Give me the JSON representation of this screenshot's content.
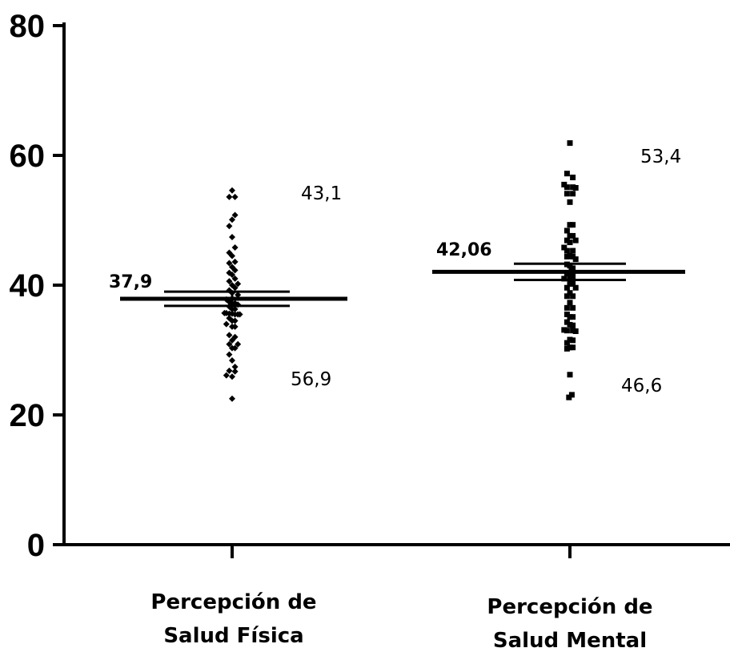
{
  "chart_data": {
    "type": "scatter",
    "title": "",
    "xlabel": "",
    "ylabel": "",
    "ylim": [
      0,
      80
    ],
    "yticks": [
      "0",
      "20",
      "40",
      "60",
      "80"
    ],
    "grid": false,
    "categories": [
      "Percepción de Salud Física",
      "Percepción de Salud Mental"
    ],
    "category_label_lines": [
      [
        "Percepción de",
        "Salud Física"
      ],
      [
        "Percepción de",
        "Salud Mental"
      ]
    ],
    "series": [
      {
        "category": "Percepción de Salud Física",
        "marker": "diamond",
        "mean": 37.9,
        "mean_label": "37,9",
        "error_bar": [
          36.8,
          39.0
        ],
        "points": [
          [
            0,
            54.6
          ],
          [
            -0.3,
            53.6
          ],
          [
            0.3,
            53.6
          ],
          [
            0.3,
            50.8
          ],
          [
            0,
            50.1
          ],
          [
            -0.3,
            49.1
          ],
          [
            0,
            47.4
          ],
          [
            0.3,
            45.8
          ],
          [
            -0.3,
            45.0
          ],
          [
            0,
            44.5
          ],
          [
            0.3,
            43.6
          ],
          [
            -0.3,
            43.4
          ],
          [
            0,
            42.8
          ],
          [
            0.3,
            42.3
          ],
          [
            -0.3,
            41.9
          ],
          [
            0,
            41.6
          ],
          [
            0.3,
            41.0
          ],
          [
            -0.3,
            40.6
          ],
          [
            0.6,
            40.2
          ],
          [
            0,
            40.0
          ],
          [
            0.3,
            39.6
          ],
          [
            -0.3,
            39.2
          ],
          [
            0,
            38.8
          ],
          [
            0.6,
            38.5
          ],
          [
            -0.6,
            37.8
          ],
          [
            -0.3,
            37.4
          ],
          [
            0,
            37.2
          ],
          [
            0.3,
            37.2
          ],
          [
            0.6,
            37.0
          ],
          [
            -0.3,
            36.7
          ],
          [
            0,
            36.3
          ],
          [
            0.3,
            36.3
          ],
          [
            -0.8,
            35.7
          ],
          [
            -0.6,
            35.7
          ],
          [
            -0.3,
            35.6
          ],
          [
            0,
            35.6
          ],
          [
            0.3,
            35.5
          ],
          [
            0.6,
            35.5
          ],
          [
            0.8,
            35.5
          ],
          [
            -0.3,
            34.9
          ],
          [
            0,
            34.5
          ],
          [
            0.3,
            34.5
          ],
          [
            -0.6,
            34.0
          ],
          [
            0,
            33.6
          ],
          [
            0.3,
            33.6
          ],
          [
            -0.3,
            32.3
          ],
          [
            0.3,
            32.0
          ],
          [
            0,
            31.5
          ],
          [
            -0.3,
            30.9
          ],
          [
            0.6,
            30.9
          ],
          [
            0,
            30.3
          ],
          [
            0.3,
            30.3
          ],
          [
            -0.3,
            29.3
          ],
          [
            0,
            28.4
          ],
          [
            0.3,
            27.4
          ],
          [
            -0.3,
            26.8
          ],
          [
            0.3,
            26.7
          ],
          [
            -0.6,
            26.1
          ],
          [
            0,
            25.9
          ],
          [
            0,
            22.5
          ]
        ],
        "annotations": [
          "43,1",
          "56,9"
        ]
      },
      {
        "category": "Percepción de Salud Mental",
        "marker": "square",
        "mean": 42.06,
        "mean_label": "42,06",
        "error_bar": [
          40.8,
          43.3
        ],
        "points": [
          [
            0,
            61.9
          ],
          [
            -0.3,
            57.2
          ],
          [
            0.3,
            56.6
          ],
          [
            -0.6,
            55.5
          ],
          [
            -0.3,
            55.1
          ],
          [
            0.3,
            55.1
          ],
          [
            0.6,
            55.0
          ],
          [
            -0.3,
            54.1
          ],
          [
            0.3,
            54.1
          ],
          [
            0,
            52.8
          ],
          [
            0,
            49.3
          ],
          [
            0.3,
            49.3
          ],
          [
            -0.3,
            48.4
          ],
          [
            0,
            47.6
          ],
          [
            0.3,
            47.6
          ],
          [
            -0.3,
            46.9
          ],
          [
            0.6,
            46.9
          ],
          [
            0,
            46.6
          ],
          [
            -0.6,
            45.8
          ],
          [
            -0.3,
            45.3
          ],
          [
            0.3,
            45.3
          ],
          [
            0,
            44.5
          ],
          [
            -0.3,
            44.4
          ],
          [
            0.3,
            44.4
          ],
          [
            0.6,
            44.0
          ],
          [
            -0.3,
            43.2
          ],
          [
            0,
            43.0
          ],
          [
            0.3,
            42.6
          ],
          [
            -0.3,
            41.8
          ],
          [
            0,
            41.4
          ],
          [
            0.3,
            41.4
          ],
          [
            -0.6,
            41.0
          ],
          [
            0,
            40.2
          ],
          [
            0.3,
            40.2
          ],
          [
            -0.3,
            39.6
          ],
          [
            0.6,
            39.6
          ],
          [
            0,
            38.8
          ],
          [
            -0.3,
            38.3
          ],
          [
            0.3,
            38.3
          ],
          [
            0,
            37.3
          ],
          [
            -0.3,
            36.5
          ],
          [
            0.3,
            36.5
          ],
          [
            -0.3,
            35.5
          ],
          [
            0,
            35.1
          ],
          [
            0.3,
            35.1
          ],
          [
            -0.3,
            34.3
          ],
          [
            0,
            33.9
          ],
          [
            0.3,
            33.8
          ],
          [
            -0.6,
            33.1
          ],
          [
            -0.3,
            33.0
          ],
          [
            0.3,
            33.0
          ],
          [
            0.6,
            32.9
          ],
          [
            0,
            31.6
          ],
          [
            0.3,
            31.5
          ],
          [
            -0.3,
            31.1
          ],
          [
            0,
            30.4
          ],
          [
            0.3,
            30.4
          ],
          [
            -0.3,
            30.2
          ],
          [
            0,
            26.2
          ],
          [
            -0.1,
            22.7
          ],
          [
            0.2,
            23.1
          ]
        ],
        "annotations": [
          "53,4",
          "46,6"
        ]
      }
    ]
  }
}
